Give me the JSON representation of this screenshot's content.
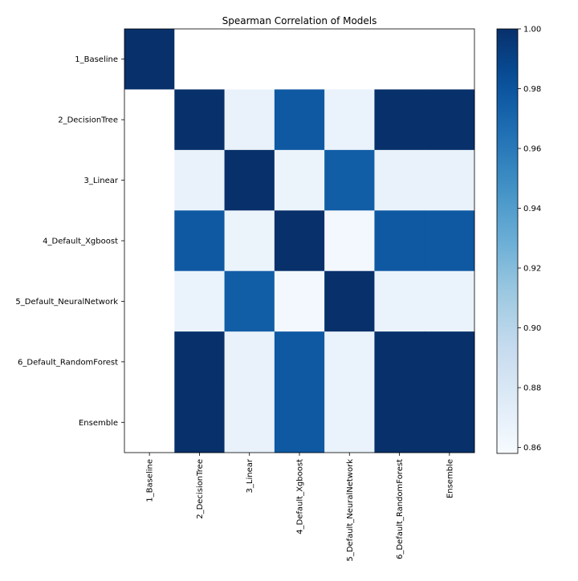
{
  "chart_data": {
    "type": "heatmap",
    "title": "Spearman Correlation of Models",
    "xlabel": "",
    "ylabel": "",
    "rows": [
      "1_Baseline",
      "2_DecisionTree",
      "3_Linear",
      "4_Default_Xgboost",
      "5_Default_NeuralNetwork",
      "6_Default_RandomForest",
      "Ensemble"
    ],
    "columns": [
      "1_Baseline",
      "2_DecisionTree",
      "3_Linear",
      "4_Default_Xgboost",
      "5_Default_NeuralNetwork",
      "6_Default_RandomForest",
      "Ensemble"
    ],
    "values": [
      [
        1.0,
        null,
        null,
        null,
        null,
        null,
        null
      ],
      [
        null,
        1.0,
        0.868,
        0.978,
        0.867,
        1.0,
        1.0
      ],
      [
        null,
        0.868,
        1.0,
        0.866,
        0.975,
        0.868,
        0.868
      ],
      [
        null,
        0.978,
        0.866,
        1.0,
        0.861,
        0.978,
        0.978
      ],
      [
        null,
        0.867,
        0.975,
        0.861,
        1.0,
        0.867,
        0.867
      ],
      [
        null,
        1.0,
        0.868,
        0.978,
        0.867,
        1.0,
        1.0
      ],
      [
        null,
        1.0,
        0.868,
        0.978,
        0.867,
        1.0,
        1.0
      ]
    ],
    "colormap": "Blues",
    "vmin": 0.858,
    "vmax": 1.0,
    "colorbar": {
      "ticks": [
        0.86,
        0.88,
        0.9,
        0.92,
        0.94,
        0.96,
        0.98,
        1.0
      ],
      "tick_labels": [
        "0.86",
        "0.88",
        "0.90",
        "0.92",
        "0.94",
        "0.96",
        "0.98",
        "1.00"
      ],
      "position": "right"
    },
    "missing_color": "#ffffff",
    "grid": false
  }
}
